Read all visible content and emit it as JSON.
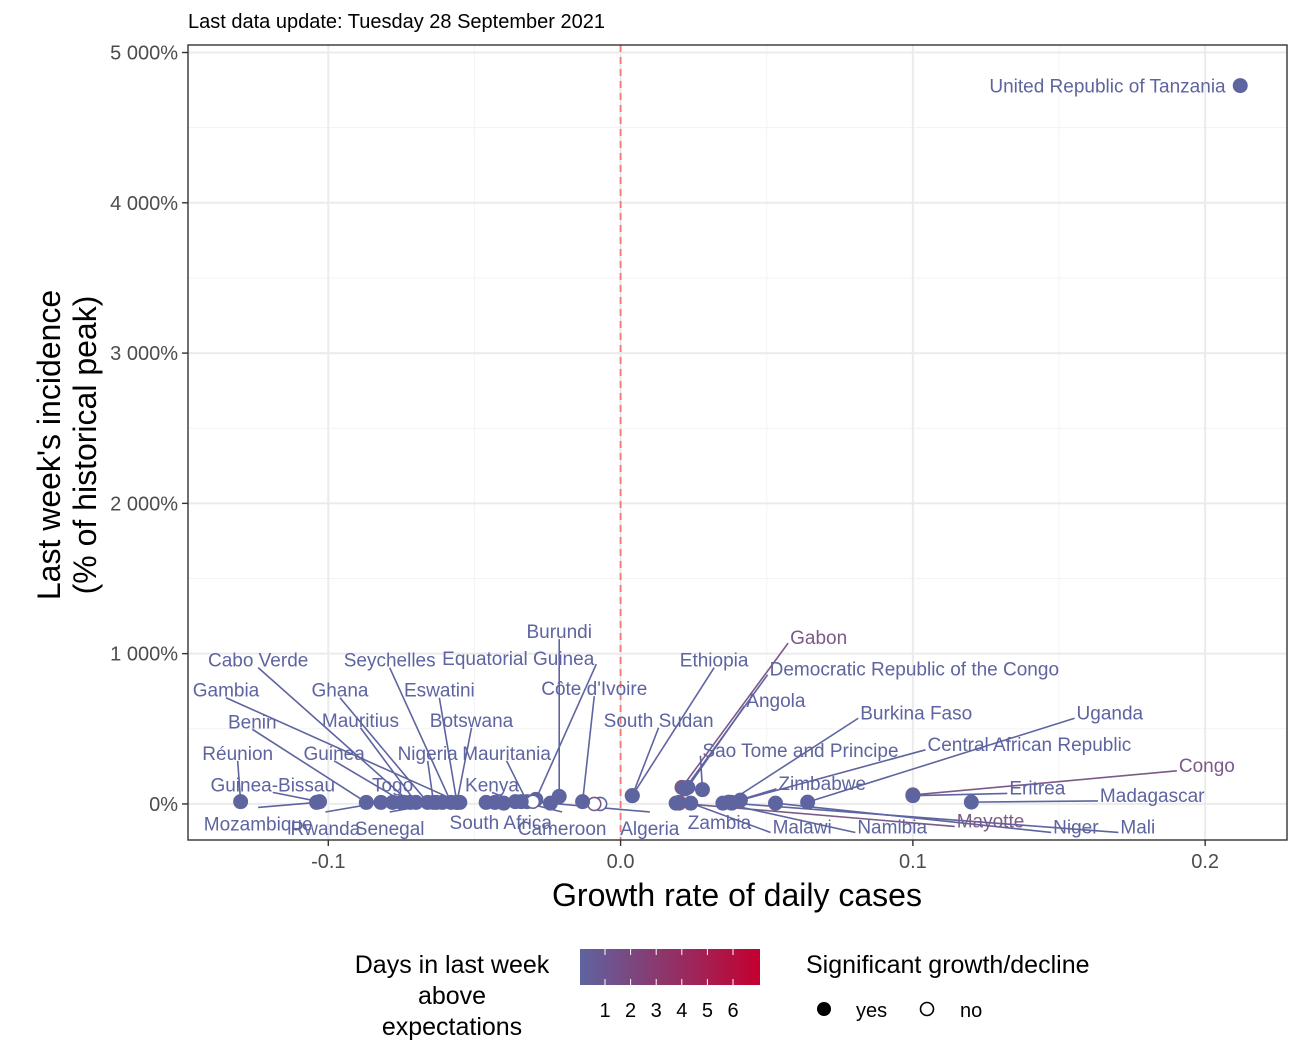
{
  "chart_data": {
    "type": "scatter",
    "subtitle": "Last data update: Tuesday 28 September 2021",
    "xlabel": "Growth rate of daily cases",
    "ylabel_lines": [
      "Last week's incidence",
      "(% of historical peak)"
    ],
    "xlim": [
      -0.148,
      0.228
    ],
    "ylim": [
      -240,
      5050
    ],
    "x_ticks": [
      -0.1,
      0.0,
      0.1,
      0.2
    ],
    "x_tick_labels": [
      "-0.1",
      "0.0",
      "0.1",
      "0.2"
    ],
    "y_ticks": [
      0,
      1000,
      2000,
      3000,
      4000,
      5000
    ],
    "y_tick_labels": [
      "0%",
      "1 000%",
      "2 000%",
      "3 000%",
      "4 000%",
      "5 000%"
    ],
    "reference_line": {
      "x": 0,
      "color": "#F8766D",
      "style": "dashed"
    },
    "grid": true,
    "colors": {
      "days_1": "#5E64A0",
      "days_2": "#7C5A88",
      "days_6": "#C4002F"
    },
    "points": [
      {
        "name": "United Republic of Tanzania",
        "x": 0.212,
        "y": 4780,
        "days": 1,
        "significant": true,
        "label_x": 0.207,
        "label_y": 4780,
        "anchor": "end"
      },
      {
        "name": "Gabon",
        "x": 0.021,
        "y": 110,
        "days": 2,
        "significant": true,
        "label_x": 0.058,
        "label_y": 1110,
        "anchor": "start"
      },
      {
        "name": "Democratic Republic of the Congo",
        "x": 0.022,
        "y": 100,
        "days": 1,
        "significant": true,
        "label_x": 0.051,
        "label_y": 900,
        "anchor": "start"
      },
      {
        "name": "Angola",
        "x": 0.023,
        "y": 110,
        "days": 1,
        "significant": true,
        "label_x": 0.043,
        "label_y": 690,
        "anchor": "start"
      },
      {
        "name": "Burkina Faso",
        "x": 0.037,
        "y": 12,
        "days": 1,
        "significant": true,
        "label_x": 0.082,
        "label_y": 610,
        "anchor": "start"
      },
      {
        "name": "Uganda",
        "x": 0.064,
        "y": 12,
        "days": 1,
        "significant": true,
        "label_x": 0.156,
        "label_y": 610,
        "anchor": "start"
      },
      {
        "name": "Sao Tome and Principe",
        "x": 0.028,
        "y": 95,
        "days": 1,
        "significant": true,
        "label_x": 0.028,
        "label_y": 360,
        "anchor": "start"
      },
      {
        "name": "Central African Republic",
        "x": 0.041,
        "y": 25,
        "days": 1,
        "significant": true,
        "label_x": 0.105,
        "label_y": 400,
        "anchor": "start"
      },
      {
        "name": "Congo",
        "x": 0.1,
        "y": 60,
        "days": 2,
        "significant": true,
        "label_x": 0.191,
        "label_y": 260,
        "anchor": "start"
      },
      {
        "name": "Zimbabwe",
        "x": 0.038,
        "y": 10,
        "days": 1,
        "significant": true,
        "label_x": 0.054,
        "label_y": 140,
        "anchor": "start"
      },
      {
        "name": "Eritrea",
        "x": 0.1,
        "y": 55,
        "days": 1,
        "significant": true,
        "label_x": 0.133,
        "label_y": 110,
        "anchor": "start"
      },
      {
        "name": "Madagascar",
        "x": 0.12,
        "y": 12,
        "days": 1,
        "significant": true,
        "label_x": 0.164,
        "label_y": 60,
        "anchor": "start"
      },
      {
        "name": "Mayotte",
        "x": 0.02,
        "y": 5,
        "days": 2,
        "significant": true,
        "label_x": 0.115,
        "label_y": -110,
        "anchor": "start"
      },
      {
        "name": "Niger",
        "x": 0.053,
        "y": 5,
        "days": 1,
        "significant": true,
        "label_x": 0.148,
        "label_y": -150,
        "anchor": "start"
      },
      {
        "name": "Mali",
        "x": 0.038,
        "y": 5,
        "days": 1,
        "significant": true,
        "label_x": 0.171,
        "label_y": -150,
        "anchor": "start"
      },
      {
        "name": "Namibia",
        "x": 0.035,
        "y": 5,
        "days": 1,
        "significant": true,
        "label_x": 0.081,
        "label_y": -150,
        "anchor": "start"
      },
      {
        "name": "Malawi",
        "x": 0.024,
        "y": 5,
        "days": 1,
        "significant": true,
        "label_x": 0.052,
        "label_y": -150,
        "anchor": "start"
      },
      {
        "name": "Zambia",
        "x": 0.019,
        "y": 5,
        "days": 1,
        "significant": true,
        "label_x": 0.023,
        "label_y": -120,
        "anchor": "start"
      },
      {
        "name": "Ethiopia",
        "x": 0.004,
        "y": 55,
        "days": 1,
        "significant": true,
        "label_x": 0.032,
        "label_y": 960,
        "anchor": "middle"
      },
      {
        "name": "South Sudan",
        "x": 0.004,
        "y": 55,
        "days": 1,
        "significant": true,
        "label_x": 0.013,
        "label_y": 560,
        "anchor": "middle"
      },
      {
        "name": "Côte d'Ivoire",
        "x": -0.013,
        "y": 15,
        "days": 1,
        "significant": true,
        "label_x": -0.009,
        "label_y": 770,
        "anchor": "middle"
      },
      {
        "name": "Burundi",
        "x": -0.021,
        "y": 50,
        "days": 1,
        "significant": true,
        "label_x": -0.021,
        "label_y": 1150,
        "anchor": "middle"
      },
      {
        "name": "Equatorial Guinea",
        "x": -0.029,
        "y": 30,
        "days": 1,
        "significant": true,
        "label_x": -0.009,
        "label_y": 970,
        "anchor": "end"
      },
      {
        "name": "Mauritania",
        "x": -0.032,
        "y": 15,
        "days": 1,
        "significant": true,
        "label_x": -0.039,
        "label_y": 340,
        "anchor": "middle"
      },
      {
        "name": "Kenya",
        "x": -0.036,
        "y": 15,
        "days": 1,
        "significant": true,
        "label_x": -0.044,
        "label_y": 130,
        "anchor": "middle"
      },
      {
        "name": "Algeria",
        "x": -0.03,
        "y": 15,
        "days": 1,
        "significant": false,
        "label_x": 0.01,
        "label_y": -160,
        "anchor": "middle"
      },
      {
        "name": "Cameroon",
        "x": -0.034,
        "y": 15,
        "days": 1,
        "significant": true,
        "label_x": -0.02,
        "label_y": -160,
        "anchor": "middle"
      },
      {
        "name": "South Africa",
        "x": -0.046,
        "y": 10,
        "days": 1,
        "significant": true,
        "label_x": -0.041,
        "label_y": -120,
        "anchor": "middle"
      },
      {
        "name": "Botswana",
        "x": -0.056,
        "y": 10,
        "days": 1,
        "significant": true,
        "label_x": -0.051,
        "label_y": 560,
        "anchor": "middle"
      },
      {
        "name": "Eswatini",
        "x": -0.056,
        "y": 10,
        "days": 1,
        "significant": true,
        "label_x": -0.062,
        "label_y": 760,
        "anchor": "middle"
      },
      {
        "name": "Seychelles",
        "x": -0.058,
        "y": 10,
        "days": 1,
        "significant": true,
        "label_x": -0.079,
        "label_y": 960,
        "anchor": "middle"
      },
      {
        "name": "Nigeria",
        "x": -0.064,
        "y": 10,
        "days": 1,
        "significant": true,
        "label_x": -0.066,
        "label_y": 340,
        "anchor": "middle"
      },
      {
        "name": "Mauritius",
        "x": -0.07,
        "y": 10,
        "days": 1,
        "significant": true,
        "label_x": -0.089,
        "label_y": 560,
        "anchor": "middle"
      },
      {
        "name": "Ghana",
        "x": -0.066,
        "y": 10,
        "days": 1,
        "significant": true,
        "label_x": -0.096,
        "label_y": 760,
        "anchor": "middle"
      },
      {
        "name": "Cabo Verde",
        "x": -0.072,
        "y": 10,
        "days": 1,
        "significant": true,
        "label_x": -0.124,
        "label_y": 960,
        "anchor": "middle"
      },
      {
        "name": "Gambia",
        "x": -0.055,
        "y": 10,
        "days": 1,
        "significant": true,
        "label_x": -0.135,
        "label_y": 760,
        "anchor": "middle"
      },
      {
        "name": "Guinea",
        "x": -0.074,
        "y": 10,
        "days": 1,
        "significant": true,
        "label_x": -0.098,
        "label_y": 340,
        "anchor": "middle"
      },
      {
        "name": "Togo",
        "x": -0.078,
        "y": 10,
        "days": 1,
        "significant": true,
        "label_x": -0.078,
        "label_y": 130,
        "anchor": "middle"
      },
      {
        "name": "Benin",
        "x": -0.087,
        "y": 10,
        "days": 1,
        "significant": true,
        "label_x": -0.126,
        "label_y": 550,
        "anchor": "middle"
      },
      {
        "name": "Réunion",
        "x": -0.13,
        "y": 15,
        "days": 1,
        "significant": true,
        "label_x": -0.131,
        "label_y": 340,
        "anchor": "middle"
      },
      {
        "name": "Guinea-Bissau",
        "x": -0.103,
        "y": 15,
        "days": 1,
        "significant": true,
        "label_x": -0.119,
        "label_y": 130,
        "anchor": "middle"
      },
      {
        "name": "Mozambique",
        "x": -0.104,
        "y": 10,
        "days": 1,
        "significant": true,
        "label_x": -0.124,
        "label_y": -130,
        "anchor": "middle"
      },
      {
        "name": "Rwanda",
        "x": -0.082,
        "y": 10,
        "days": 1,
        "significant": true,
        "label_x": -0.101,
        "label_y": -160,
        "anchor": "middle"
      },
      {
        "name": "Senegal",
        "x": -0.061,
        "y": 10,
        "days": 1,
        "significant": true,
        "label_x": -0.079,
        "label_y": -160,
        "anchor": "middle"
      }
    ],
    "extra_points": [
      {
        "x": -0.04,
        "y": 5,
        "days": 1,
        "significant": true
      },
      {
        "x": -0.024,
        "y": 5,
        "days": 1,
        "significant": true
      },
      {
        "x": -0.007,
        "y": 0,
        "days": 1,
        "significant": false
      },
      {
        "x": -0.009,
        "y": 0,
        "days": 2,
        "significant": false
      },
      {
        "x": -0.043,
        "y": 10,
        "days": 1,
        "significant": true
      },
      {
        "x": -0.063,
        "y": 10,
        "days": 1,
        "significant": true
      },
      {
        "x": -0.075,
        "y": 10,
        "days": 1,
        "significant": true
      },
      {
        "x": 0.02,
        "y": 10,
        "days": 1,
        "significant": true
      }
    ],
    "legend": {
      "color_title_lines": [
        "Days in last week",
        "above",
        "expectations"
      ],
      "color_labels": [
        "1",
        "2",
        "3",
        "4",
        "5",
        "6"
      ],
      "shape_title": "Significant growth/decline",
      "shape_labels": [
        "yes",
        "no"
      ],
      "position": "bottom"
    }
  }
}
